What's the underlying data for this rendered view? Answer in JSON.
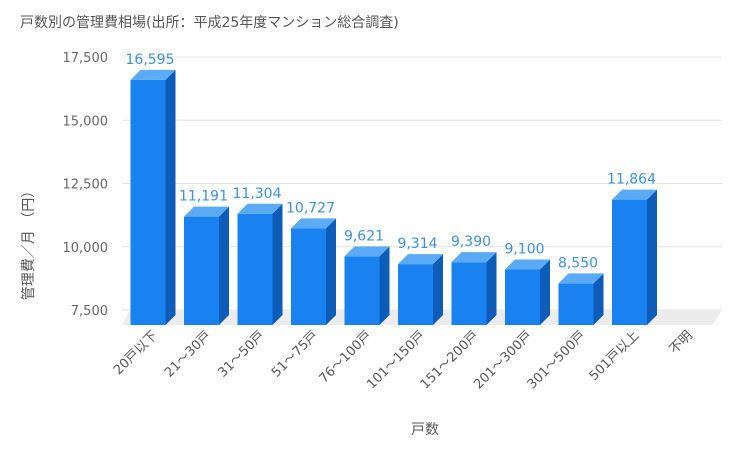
{
  "chart_data": {
    "type": "bar",
    "title": "戸数別の管理費相場(出所：平成25年度マンション総合調査)",
    "xlabel": "戸数",
    "ylabel": "管理費／月 （円）",
    "categories": [
      "20戸以下",
      "21～30戸",
      "31～50戸",
      "51～75戸",
      "76～100戸",
      "101～150戸",
      "151～200戸",
      "201～300戸",
      "301～500戸",
      "501戸以上",
      "不明"
    ],
    "values": [
      16595,
      11191,
      11304,
      10727,
      9621,
      9314,
      9390,
      9100,
      8550,
      11864,
      null
    ],
    "value_labels": [
      "16,595",
      "11,191",
      "11,304",
      "10,727",
      "9,621",
      "9,314",
      "9,390",
      "9,100",
      "8,550",
      "11,864",
      ""
    ],
    "ylim": [
      7500,
      17500
    ],
    "yticks": [
      7500,
      10000,
      12500,
      15000,
      17500
    ],
    "ytick_labels": [
      "7,500",
      "10,000",
      "12,500",
      "15,000",
      "17,500"
    ],
    "grid": true,
    "legend": "none",
    "colors": {
      "bar_front": "#1a82f0",
      "bar_top": "#5aaaf5",
      "bar_side": "#0c5cb8",
      "label": "#3c8fe0",
      "grid": "#e3e3e3",
      "floor": "#ececec"
    }
  }
}
